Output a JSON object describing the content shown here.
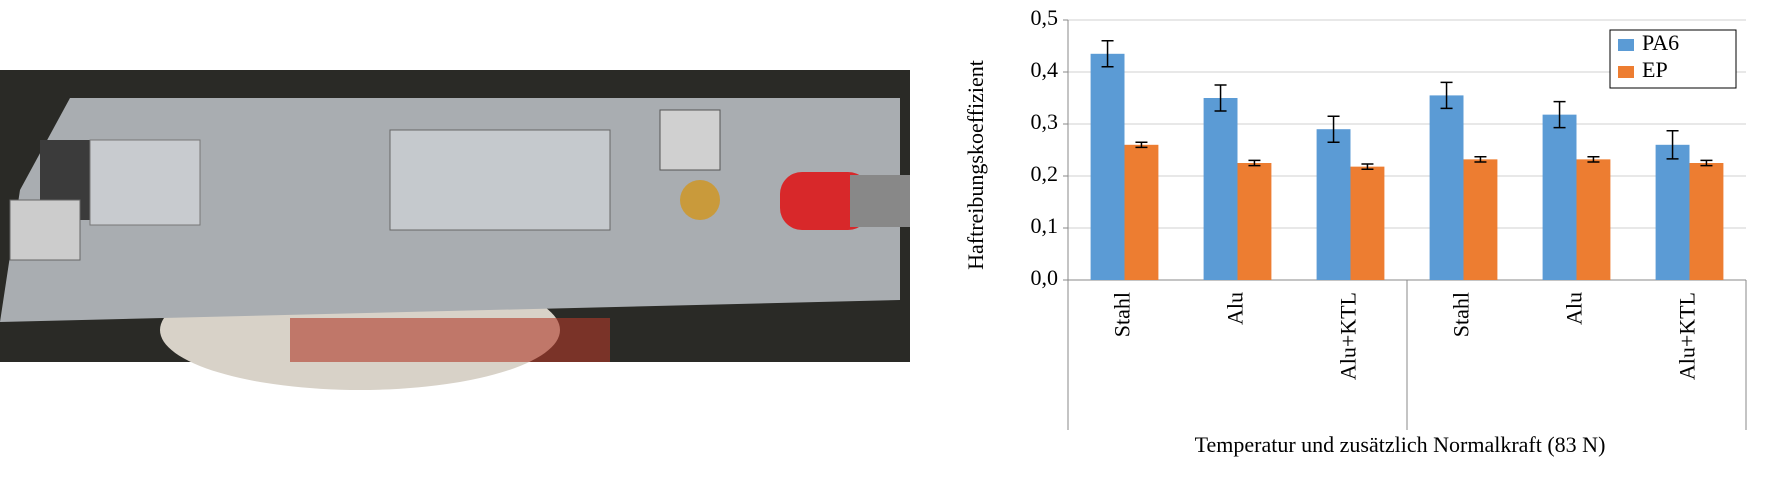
{
  "chart_data": {
    "type": "bar",
    "y_label": "Haftreibungskoeffizient",
    "x_label": "Temperatur und zusätzlich Normalkraft (83 N)",
    "categories": [
      "Stahl",
      "Alu",
      "Alu+KTL",
      "Stahl",
      "Alu",
      "Alu+KTL"
    ],
    "series": [
      {
        "name": "PA6",
        "color": "#5b9bd5",
        "values": [
          0.435,
          0.35,
          0.29,
          0.355,
          0.318,
          0.26
        ],
        "errors": [
          0.025,
          0.025,
          0.025,
          0.025,
          0.025,
          0.027
        ]
      },
      {
        "name": "EP",
        "color": "#ed7d31",
        "values": [
          0.26,
          0.225,
          0.218,
          0.232,
          0.232,
          0.225
        ],
        "errors": [
          0.005,
          0.005,
          0.005,
          0.005,
          0.005,
          0.005
        ]
      }
    ],
    "ylim": [
      0,
      0.5
    ],
    "yticks": [
      {
        "value": 0,
        "label": "0,0"
      },
      {
        "value": 0.1,
        "label": "0,1"
      },
      {
        "value": 0.2,
        "label": "0,2"
      },
      {
        "value": 0.3,
        "label": "0,3"
      },
      {
        "value": 0.4,
        "label": "0,4"
      },
      {
        "value": 0.5,
        "label": "0,5"
      }
    ],
    "grid": true,
    "legend": "top-right"
  }
}
